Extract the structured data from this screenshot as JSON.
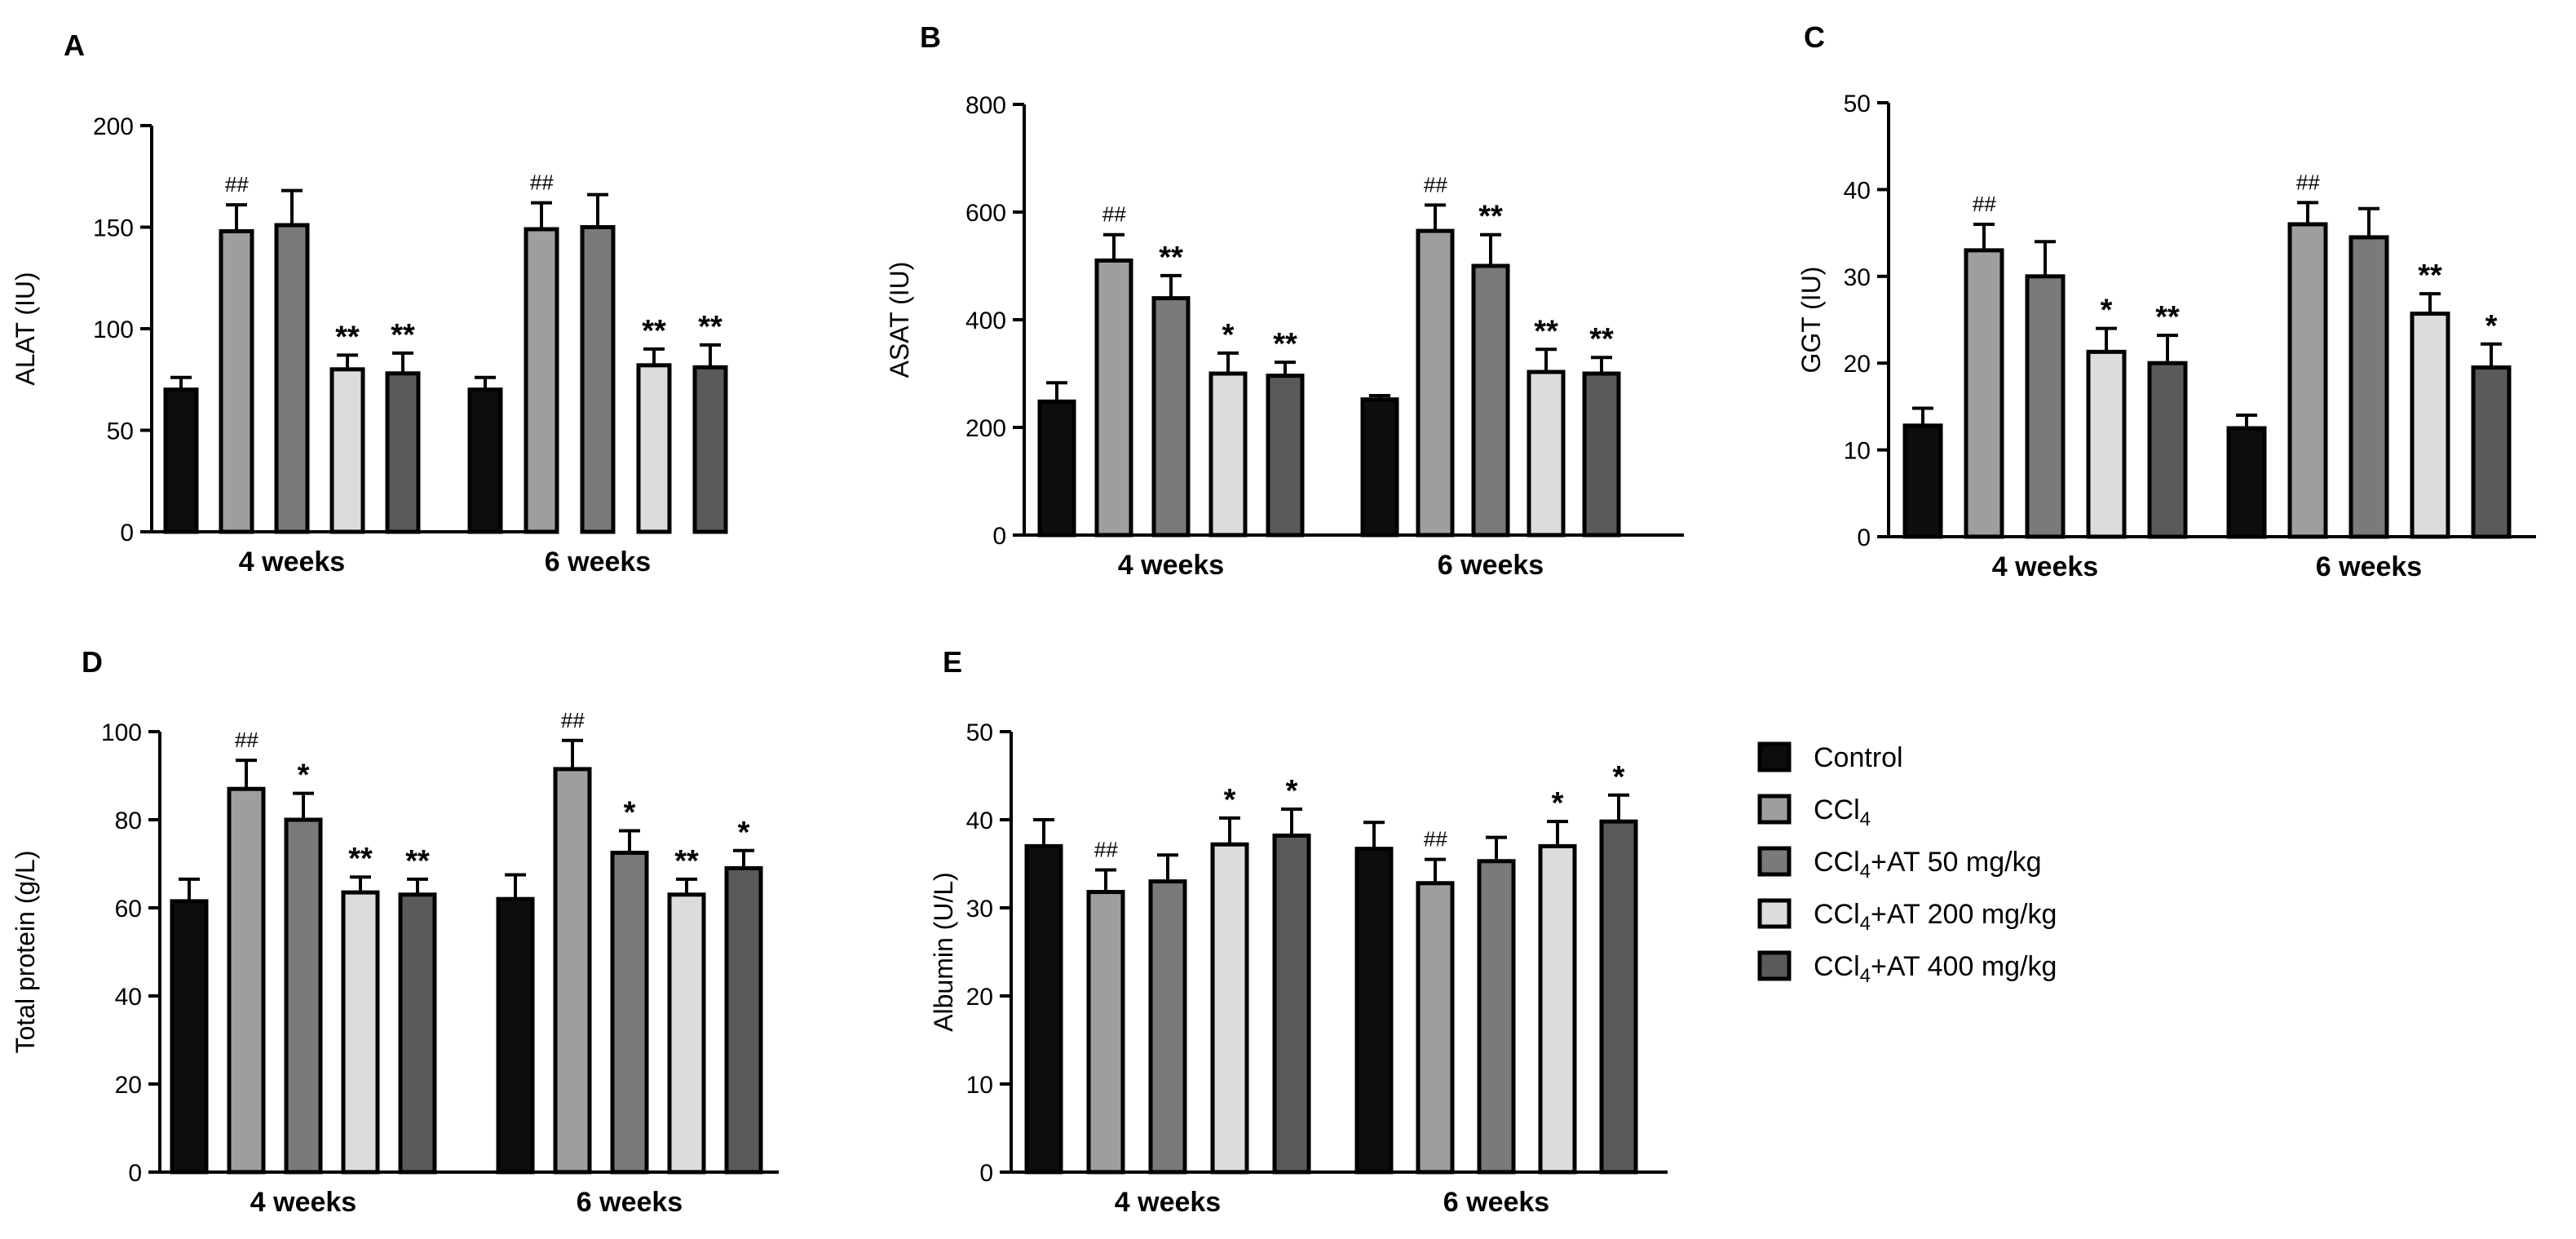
{
  "chart_data": [
    {
      "type": "bar",
      "panel": "A",
      "ylabel": "ALAT (IU)",
      "ylim": [
        0,
        200
      ],
      "yticks": [
        0,
        50,
        100,
        150,
        200
      ],
      "categories": [
        "4 weeks",
        "6 weeks"
      ],
      "series": [
        {
          "name": "Control",
          "values": [
            70,
            70
          ],
          "errors": [
            6,
            6
          ],
          "marks": [
            "",
            ""
          ]
        },
        {
          "name": "CCl4",
          "values": [
            148,
            149
          ],
          "errors": [
            13,
            13
          ],
          "marks": [
            "##",
            "##"
          ]
        },
        {
          "name": "CCl4+AT 50 mg/kg",
          "values": [
            151,
            150
          ],
          "errors": [
            17,
            16
          ],
          "marks": [
            "",
            ""
          ]
        },
        {
          "name": "CCl4+AT 200 mg/kg",
          "values": [
            80,
            82
          ],
          "errors": [
            7,
            8
          ],
          "marks": [
            "**",
            "**"
          ]
        },
        {
          "name": "CCl4+AT 400 mg/kg",
          "values": [
            78,
            81
          ],
          "errors": [
            10,
            11
          ],
          "marks": [
            "**",
            "**"
          ]
        }
      ]
    },
    {
      "type": "bar",
      "panel": "B",
      "ylabel": "ASAT (IU)",
      "ylim": [
        0,
        800
      ],
      "yticks": [
        0,
        200,
        400,
        600,
        800
      ],
      "categories": [
        "4 weeks",
        "6 weeks"
      ],
      "series": [
        {
          "name": "Control",
          "values": [
            248,
            252
          ],
          "errors": [
            35,
            7
          ],
          "marks": [
            "",
            ""
          ]
        },
        {
          "name": "CCl4",
          "values": [
            510,
            565
          ],
          "errors": [
            48,
            48
          ],
          "marks": [
            "##",
            "##"
          ]
        },
        {
          "name": "CCl4+AT 50 mg/kg",
          "values": [
            440,
            500
          ],
          "errors": [
            42,
            58
          ],
          "marks": [
            "**",
            "**"
          ]
        },
        {
          "name": "CCl4+AT 200 mg/kg",
          "values": [
            300,
            303
          ],
          "errors": [
            38,
            42
          ],
          "marks": [
            "*",
            "**"
          ]
        },
        {
          "name": "CCl4+AT 400 mg/kg",
          "values": [
            296,
            300
          ],
          "errors": [
            25,
            30
          ],
          "marks": [
            "**",
            "**"
          ]
        }
      ]
    },
    {
      "type": "bar",
      "panel": "C",
      "ylabel": "GGT (IU)",
      "ylim": [
        0,
        50
      ],
      "yticks": [
        0,
        10,
        20,
        30,
        40,
        50
      ],
      "categories": [
        "4 weeks",
        "6 weeks"
      ],
      "series": [
        {
          "name": "Control",
          "values": [
            12.8,
            12.5
          ],
          "errors": [
            2.0,
            1.5
          ],
          "marks": [
            "",
            ""
          ]
        },
        {
          "name": "CCl4",
          "values": [
            33,
            36
          ],
          "errors": [
            3.0,
            2.5
          ],
          "marks": [
            "##",
            "##"
          ]
        },
        {
          "name": "CCl4+AT 50 mg/kg",
          "values": [
            30,
            34.5
          ],
          "errors": [
            4.0,
            3.3
          ],
          "marks": [
            "",
            ""
          ]
        },
        {
          "name": "CCl4+AT 200 mg/kg",
          "values": [
            21.3,
            25.7
          ],
          "errors": [
            2.7,
            2.3
          ],
          "marks": [
            "*",
            "**"
          ]
        },
        {
          "name": "CCl4+AT 400 mg/kg",
          "values": [
            20,
            19.5
          ],
          "errors": [
            3.2,
            2.7
          ],
          "marks": [
            "**",
            "*"
          ]
        }
      ]
    },
    {
      "type": "bar",
      "panel": "D",
      "ylabel": "Total protein (g/L)",
      "ylim": [
        0,
        100
      ],
      "yticks": [
        0,
        20,
        40,
        60,
        80,
        100
      ],
      "categories": [
        "4 weeks",
        "6 weeks"
      ],
      "series": [
        {
          "name": "Control",
          "values": [
            61.5,
            62
          ],
          "errors": [
            5,
            5.5
          ],
          "marks": [
            "",
            ""
          ]
        },
        {
          "name": "CCl4",
          "values": [
            87,
            91.5
          ],
          "errors": [
            6.5,
            6.5
          ],
          "marks": [
            "##",
            "##"
          ]
        },
        {
          "name": "CCl4+AT 50 mg/kg",
          "values": [
            80,
            72.5
          ],
          "errors": [
            6,
            5
          ],
          "marks": [
            "*",
            "*"
          ]
        },
        {
          "name": "CCl4+AT 200 mg/kg",
          "values": [
            63.5,
            63
          ],
          "errors": [
            3.5,
            3.5
          ],
          "marks": [
            "**",
            "**"
          ]
        },
        {
          "name": "CCl4+AT 400 mg/kg",
          "values": [
            63,
            69
          ],
          "errors": [
            3.5,
            4
          ],
          "marks": [
            "**",
            "*"
          ]
        }
      ]
    },
    {
      "type": "bar",
      "panel": "E",
      "ylabel": "Albumin (U/L)",
      "ylim": [
        0,
        50
      ],
      "yticks": [
        0,
        10,
        20,
        30,
        40,
        50
      ],
      "categories": [
        "4 weeks",
        "6 weeks"
      ],
      "series": [
        {
          "name": "Control",
          "values": [
            37,
            36.7
          ],
          "errors": [
            3,
            3
          ],
          "marks": [
            "",
            ""
          ]
        },
        {
          "name": "CCl4",
          "values": [
            31.8,
            32.8
          ],
          "errors": [
            2.5,
            2.7
          ],
          "marks": [
            "##",
            "##"
          ]
        },
        {
          "name": "CCl4+AT 50 mg/kg",
          "values": [
            33,
            35.3
          ],
          "errors": [
            3,
            2.7
          ],
          "marks": [
            "",
            ""
          ]
        },
        {
          "name": "CCl4+AT 200 mg/kg",
          "values": [
            37.2,
            37
          ],
          "errors": [
            3,
            2.8
          ],
          "marks": [
            "*",
            "*"
          ]
        },
        {
          "name": "CCl4+AT 400 mg/kg",
          "values": [
            38.2,
            39.8
          ],
          "errors": [
            3,
            3
          ],
          "marks": [
            "*",
            "*"
          ]
        }
      ]
    }
  ],
  "legend": [
    {
      "label": "Control",
      "sub": "",
      "rest": "",
      "color": "#0d0d0d"
    },
    {
      "label": "CCl",
      "sub": "4",
      "rest": "",
      "color": "#9e9e9e"
    },
    {
      "label": "CCl",
      "sub": "4",
      "rest": "+AT 50 mg/kg",
      "color": "#7a7a7a"
    },
    {
      "label": "CCl",
      "sub": "4",
      "rest": "+AT 200 mg/kg",
      "color": "#dcdcdc"
    },
    {
      "label": "CCl",
      "sub": "4",
      "rest": "+AT 400 mg/kg",
      "color": "#5a5a5a"
    }
  ]
}
